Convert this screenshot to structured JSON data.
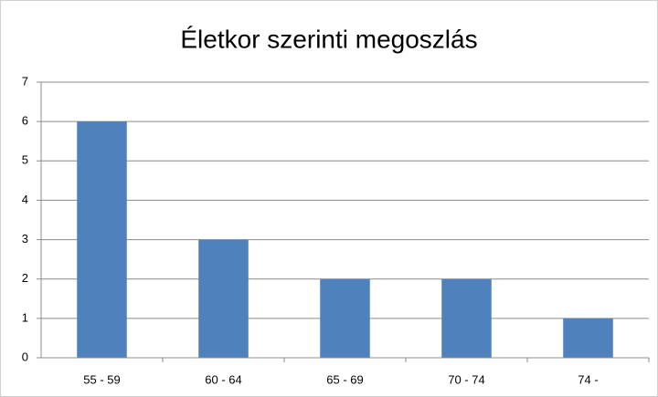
{
  "chart_data": {
    "type": "bar",
    "title": "Életkor szerinti megoszlás",
    "categories": [
      "55 - 59",
      "60 - 64",
      "65 - 69",
      "70 - 74",
      "74 -"
    ],
    "values": [
      6,
      3,
      2,
      2,
      1
    ],
    "color": "#4f81bd",
    "ylim": [
      0,
      7
    ],
    "yticks": [
      0,
      1,
      2,
      3,
      4,
      5,
      6,
      7
    ],
    "grid": true
  }
}
